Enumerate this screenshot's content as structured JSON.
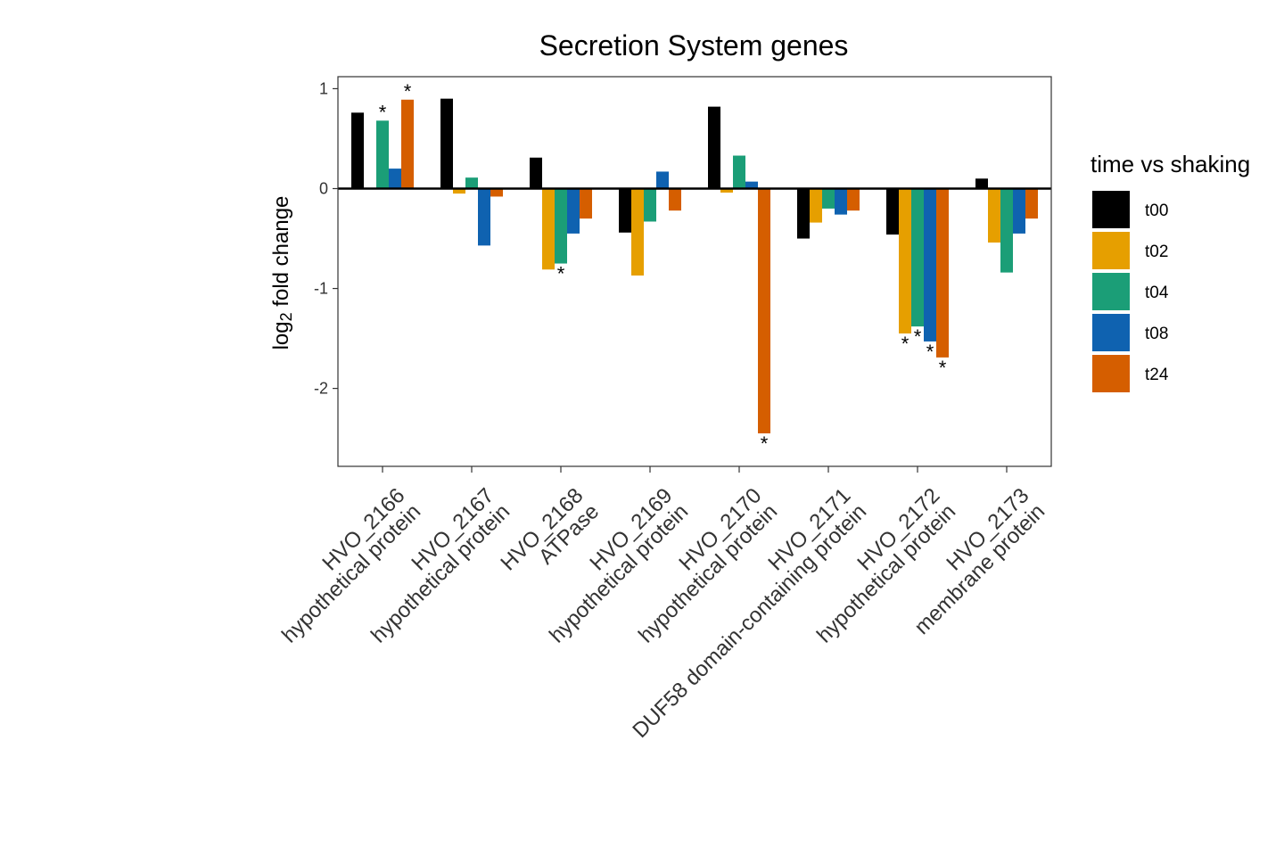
{
  "chart_data": {
    "type": "bar",
    "title": "Secretion System genes",
    "xlabel": "",
    "ylabel": {
      "prefix": "log",
      "subscript": "2",
      "suffix": " fold change"
    },
    "ylim": [
      -2.78,
      1.12
    ],
    "yticks": [
      -2,
      -1,
      0,
      1
    ],
    "grid": false,
    "legend": {
      "title": "time vs shaking",
      "placement": "right"
    },
    "categories": [
      {
        "line1": "HVO_2166",
        "line2": "hypothetical protein"
      },
      {
        "line1": "HVO_2167",
        "line2": "hypothetical protein"
      },
      {
        "line1": "HVO_2168",
        "line2": "ATPase"
      },
      {
        "line1": "HVO_2169",
        "line2": "hypothetical protein"
      },
      {
        "line1": "HVO_2170",
        "line2": "hypothetical protein"
      },
      {
        "line1": "HVO_2171",
        "line2": "DUF58 domain-containing protein"
      },
      {
        "line1": "HVO_2172",
        "line2": "hypothetical protein"
      },
      {
        "line1": "HVO_2173",
        "line2": "membrane protein"
      }
    ],
    "series": [
      {
        "name": "t00",
        "color": "#000000",
        "values": [
          0.76,
          0.9,
          0.31,
          -0.44,
          0.82,
          -0.5,
          -0.46,
          0.1
        ],
        "significant": [
          false,
          false,
          false,
          false,
          false,
          false,
          false,
          false
        ]
      },
      {
        "name": "t02",
        "color": "#E69F00",
        "values": [
          0.0,
          -0.05,
          -0.81,
          -0.87,
          -0.04,
          -0.34,
          -1.45,
          -0.54
        ],
        "significant": [
          false,
          false,
          false,
          false,
          false,
          false,
          true,
          false
        ]
      },
      {
        "name": "t04",
        "color": "#1B9E77",
        "values": [
          0.68,
          0.11,
          -0.75,
          -0.33,
          0.33,
          -0.2,
          -1.38,
          -0.84
        ],
        "significant": [
          true,
          false,
          true,
          false,
          false,
          false,
          true,
          false
        ]
      },
      {
        "name": "t08",
        "color": "#0F62B0",
        "values": [
          0.2,
          -0.57,
          -0.45,
          0.17,
          0.07,
          -0.26,
          -1.53,
          -0.45
        ],
        "significant": [
          false,
          false,
          false,
          false,
          false,
          false,
          true,
          false
        ]
      },
      {
        "name": "t24",
        "color": "#D55E00",
        "values": [
          0.89,
          -0.08,
          -0.3,
          -0.22,
          -2.45,
          -0.22,
          -1.69,
          -0.3
        ],
        "significant": [
          true,
          false,
          false,
          false,
          true,
          false,
          true,
          false
        ]
      }
    ],
    "significance_marker": "*"
  }
}
